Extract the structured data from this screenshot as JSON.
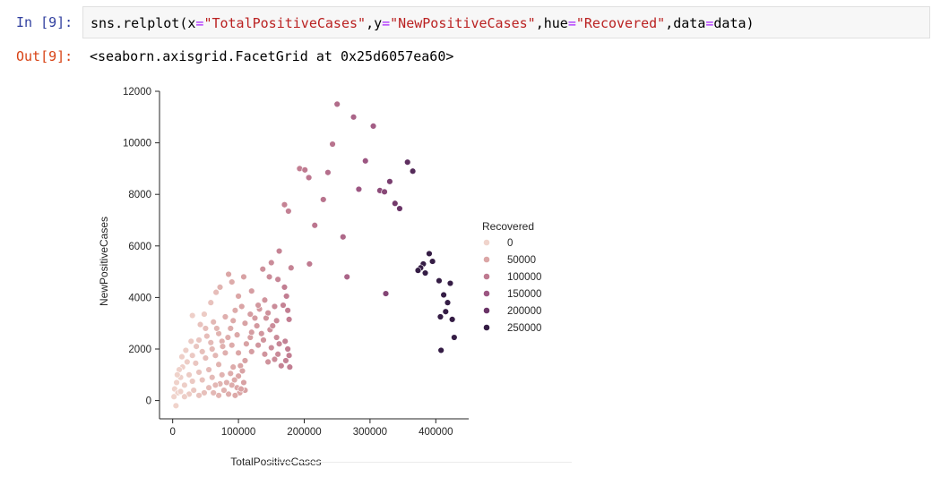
{
  "cell": {
    "in_prompt": "In [9]:",
    "out_prompt": "Out[9]:",
    "code": {
      "p1": "sns.relplot(x",
      "eq1": "=",
      "s1": "\"TotalPositiveCases\"",
      "p2": ",y",
      "eq2": "=",
      "s2": "\"NewPositiveCases\"",
      "p3": ",hue",
      "eq3": "=",
      "s3": "\"Recovered\"",
      "p4": ",data",
      "eq4": "=",
      "p5": "data)"
    },
    "output_text": "<seaborn.axisgrid.FacetGrid at 0x25d6057ea60>"
  },
  "colors": {
    "hue_0": "#f0d4cc",
    "hue_50000": "#dba6a6",
    "hue_100000": "#bf7a90",
    "hue_150000": "#9c5682",
    "hue_200000": "#6a3467",
    "hue_250000": "#351d45"
  },
  "chart_data": {
    "type": "scatter",
    "xlabel": "TotalPositiveCases",
    "ylabel": "NewPositiveCases",
    "xlim": [
      -20000,
      450000
    ],
    "ylim": [
      -500,
      12000
    ],
    "xticks": [
      "0",
      "100000",
      "200000",
      "300000",
      "400000"
    ],
    "yticks": [
      "0",
      "2000",
      "4000",
      "6000",
      "8000",
      "10000",
      "12000"
    ],
    "legend": {
      "title": "Recovered",
      "placement": "right",
      "entries": [
        "0",
        "50000",
        "100000",
        "150000",
        "200000",
        "250000"
      ]
    },
    "points": [
      [
        250000,
        11500,
        120000
      ],
      [
        275000,
        11000,
        130000
      ],
      [
        305000,
        10650,
        140000
      ],
      [
        243000,
        9950,
        110000
      ],
      [
        293000,
        9300,
        150000
      ],
      [
        357000,
        9250,
        210000
      ],
      [
        193000,
        9000,
        95000
      ],
      [
        201000,
        8950,
        100000
      ],
      [
        236000,
        8850,
        115000
      ],
      [
        365000,
        8900,
        220000
      ],
      [
        207000,
        8650,
        105000
      ],
      [
        330000,
        8500,
        185000
      ],
      [
        283000,
        8200,
        150000
      ],
      [
        315000,
        8150,
        165000
      ],
      [
        322000,
        8100,
        170000
      ],
      [
        229000,
        7800,
        110000
      ],
      [
        338000,
        7650,
        190000
      ],
      [
        345000,
        7450,
        200000
      ],
      [
        170000,
        7600,
        90000
      ],
      [
        176000,
        7350,
        92000
      ],
      [
        216000,
        6800,
        105000
      ],
      [
        259000,
        6350,
        125000
      ],
      [
        208000,
        5300,
        100000
      ],
      [
        265000,
        4800,
        130000
      ],
      [
        324000,
        4150,
        175000
      ],
      [
        390000,
        5700,
        260000
      ],
      [
        395000,
        5400,
        265000
      ],
      [
        381000,
        5300,
        258000
      ],
      [
        377000,
        5150,
        255000
      ],
      [
        373000,
        5050,
        252000
      ],
      [
        384000,
        4950,
        256000
      ],
      [
        405000,
        4650,
        270000
      ],
      [
        422000,
        4550,
        275000
      ],
      [
        412000,
        4100,
        272000
      ],
      [
        418000,
        3800,
        274000
      ],
      [
        415000,
        3450,
        276000
      ],
      [
        407000,
        3250,
        268000
      ],
      [
        425000,
        3150,
        280000
      ],
      [
        428000,
        2450,
        285000
      ],
      [
        408000,
        1950,
        270000
      ],
      [
        162000,
        5800,
        90000
      ],
      [
        150000,
        5350,
        80000
      ],
      [
        180000,
        5150,
        90000
      ],
      [
        137000,
        5100,
        75000
      ],
      [
        147000,
        4800,
        80000
      ],
      [
        160000,
        4700,
        85000
      ],
      [
        85000,
        4900,
        50000
      ],
      [
        170000,
        4400,
        95000
      ],
      [
        173000,
        4050,
        95000
      ],
      [
        168000,
        3700,
        90000
      ],
      [
        175000,
        3500,
        95000
      ],
      [
        177000,
        3150,
        95000
      ],
      [
        171000,
        2300,
        92000
      ],
      [
        175000,
        2000,
        95000
      ],
      [
        177000,
        1750,
        95000
      ],
      [
        172000,
        1550,
        92000
      ],
      [
        165000,
        1350,
        90000
      ],
      [
        178000,
        1300,
        95000
      ],
      [
        30000,
        3300,
        5000
      ],
      [
        48000,
        3350,
        10000
      ],
      [
        58000,
        3800,
        20000
      ],
      [
        66000,
        4200,
        25000
      ],
      [
        72000,
        4400,
        35000
      ],
      [
        90000,
        4600,
        45000
      ],
      [
        108000,
        4800,
        55000
      ],
      [
        120000,
        4250,
        60000
      ],
      [
        100000,
        4050,
        50000
      ],
      [
        140000,
        3900,
        70000
      ],
      [
        155000,
        3650,
        80000
      ],
      [
        132000,
        3550,
        65000
      ],
      [
        118000,
        3350,
        60000
      ],
      [
        95000,
        3500,
        45000
      ],
      [
        80000,
        3250,
        40000
      ],
      [
        62000,
        3050,
        30000
      ],
      [
        142000,
        3200,
        72000
      ],
      [
        158000,
        3100,
        82000
      ],
      [
        110000,
        3000,
        55000
      ],
      [
        128000,
        2900,
        65000
      ],
      [
        148000,
        2750,
        75000
      ],
      [
        88000,
        2800,
        45000
      ],
      [
        70000,
        2600,
        35000
      ],
      [
        52000,
        2500,
        25000
      ],
      [
        40000,
        2350,
        15000
      ],
      [
        98000,
        2550,
        48000
      ],
      [
        118000,
        2450,
        58000
      ],
      [
        138000,
        2350,
        70000
      ],
      [
        158000,
        2450,
        80000
      ],
      [
        162000,
        2200,
        85000
      ],
      [
        150000,
        2050,
        78000
      ],
      [
        130000,
        2150,
        68000
      ],
      [
        112000,
        2200,
        55000
      ],
      [
        90000,
        2150,
        45000
      ],
      [
        75000,
        2300,
        38000
      ],
      [
        60000,
        2000,
        30000
      ],
      [
        45000,
        1900,
        22000
      ],
      [
        30000,
        1750,
        12000
      ],
      [
        22000,
        1500,
        8000
      ],
      [
        15000,
        1300,
        5000
      ],
      [
        35000,
        1450,
        15000
      ],
      [
        50000,
        1650,
        25000
      ],
      [
        65000,
        1750,
        32000
      ],
      [
        80000,
        1850,
        40000
      ],
      [
        100000,
        1850,
        50000
      ],
      [
        120000,
        1900,
        60000
      ],
      [
        140000,
        1800,
        70000
      ],
      [
        155000,
        1600,
        80000
      ],
      [
        160000,
        1800,
        82000
      ],
      [
        145000,
        1500,
        72000
      ],
      [
        103000,
        1350,
        52000
      ],
      [
        110000,
        1550,
        55000
      ],
      [
        92000,
        1300,
        45000
      ],
      [
        70000,
        1400,
        35000
      ],
      [
        55000,
        1200,
        28000
      ],
      [
        40000,
        1100,
        18000
      ],
      [
        25000,
        1000,
        10000
      ],
      [
        12000,
        900,
        4000
      ],
      [
        6000,
        700,
        2000
      ],
      [
        3000,
        450,
        1000
      ],
      [
        8000,
        300,
        2000
      ],
      [
        2000,
        150,
        500
      ],
      [
        5000,
        -200,
        1000
      ],
      [
        18000,
        600,
        6000
      ],
      [
        30000,
        750,
        12000
      ],
      [
        45000,
        800,
        20000
      ],
      [
        60000,
        900,
        28000
      ],
      [
        75000,
        1000,
        36000
      ],
      [
        88000,
        1050,
        42000
      ],
      [
        100000,
        950,
        50000
      ],
      [
        106000,
        1150,
        53000
      ],
      [
        108000,
        700,
        55000
      ],
      [
        110000,
        400,
        56000
      ],
      [
        102000,
        300,
        50000
      ],
      [
        95000,
        200,
        46000
      ],
      [
        85000,
        250,
        42000
      ],
      [
        78000,
        400,
        38000
      ],
      [
        70000,
        200,
        34000
      ],
      [
        62000,
        300,
        30000
      ],
      [
        55000,
        500,
        26000
      ],
      [
        48000,
        300,
        22000
      ],
      [
        40000,
        200,
        18000
      ],
      [
        32000,
        400,
        14000
      ],
      [
        25000,
        250,
        10000
      ],
      [
        18000,
        150,
        7000
      ],
      [
        12000,
        350,
        4000
      ],
      [
        90000,
        600,
        44000
      ],
      [
        98000,
        500,
        48000
      ],
      [
        104000,
        450,
        52000
      ],
      [
        94000,
        800,
        46000
      ],
      [
        82000,
        700,
        40000
      ],
      [
        72000,
        650,
        35000
      ],
      [
        65000,
        600,
        31000
      ],
      [
        120000,
        2650,
        60000
      ],
      [
        130000,
        3700,
        66000
      ],
      [
        145000,
        3400,
        74000
      ],
      [
        152000,
        2900,
        78000
      ],
      [
        135000,
        2600,
        68000
      ],
      [
        125000,
        3200,
        62000
      ],
      [
        105000,
        3650,
        52000
      ],
      [
        92000,
        3100,
        46000
      ],
      [
        84000,
        2450,
        42000
      ],
      [
        76000,
        2100,
        38000
      ],
      [
        67000,
        2800,
        33000
      ],
      [
        58000,
        2250,
        28000
      ],
      [
        50000,
        2800,
        24000
      ],
      [
        42000,
        2950,
        20000
      ],
      [
        36000,
        2100,
        16000
      ],
      [
        28000,
        2300,
        11000
      ],
      [
        20000,
        1950,
        7000
      ],
      [
        14000,
        1700,
        5000
      ],
      [
        10000,
        1200,
        3000
      ],
      [
        7000,
        1000,
        2000
      ]
    ]
  }
}
